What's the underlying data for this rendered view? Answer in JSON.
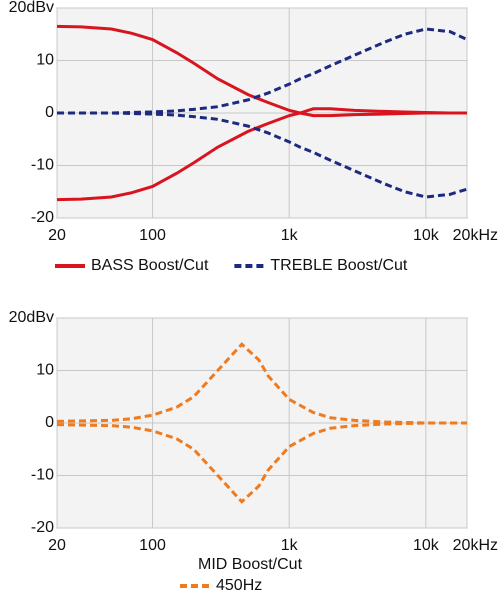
{
  "chart_data": [
    {
      "type": "line",
      "log_x": true,
      "grid": true,
      "x": [
        20,
        30,
        50,
        70,
        100,
        150,
        200,
        300,
        500,
        700,
        1000,
        1200,
        1500,
        2000,
        3000,
        5000,
        7000,
        10000,
        15000,
        20000
      ],
      "series": [
        {
          "name": "BASS Boost/Cut",
          "color": "#d9141e",
          "style": "solid",
          "values": [
            16.5,
            16.4,
            16,
            15.2,
            14,
            11.5,
            9.5,
            6.5,
            3.5,
            2,
            0.5,
            0,
            0.8,
            0.8,
            0.5,
            0.3,
            0.2,
            0.1,
            0,
            0
          ]
        },
        {
          "color": "#d9141e",
          "style": "solid",
          "values": [
            -16.5,
            -16.4,
            -16,
            -15.2,
            -14,
            -11.5,
            -9.5,
            -6.5,
            -3.5,
            -2,
            -0.5,
            0,
            -0.5,
            -0.5,
            -0.3,
            -0.2,
            -0.1,
            0,
            0,
            0
          ]
        },
        {
          "name": "TREBLE Boost/Cut",
          "color": "#1c2a80",
          "style": "dashed",
          "values": [
            0,
            0,
            0,
            0.1,
            0.2,
            0.4,
            0.7,
            1.2,
            2.5,
            3.8,
            5.5,
            6.5,
            7.5,
            9,
            11,
            13.5,
            15,
            16,
            15.5,
            14
          ]
        },
        {
          "color": "#1c2a80",
          "style": "dashed",
          "values": [
            0,
            0,
            0,
            -0.1,
            -0.2,
            -0.4,
            -0.7,
            -1.2,
            -2.5,
            -3.8,
            -5.5,
            -6.5,
            -7.5,
            -9,
            -11,
            -13.5,
            -15,
            -16,
            -15.5,
            -14.5
          ]
        }
      ],
      "xlim": [
        20,
        20000
      ],
      "xticks": [
        20,
        100,
        {
          "value": 1000,
          "label": "1k"
        },
        {
          "value": 10000,
          "label": "10k"
        },
        {
          "value": 20000,
          "label": "20kHz"
        }
      ],
      "ylim": [
        -20,
        20
      ],
      "yticks": [
        -20,
        -10,
        0,
        10,
        {
          "value": 20,
          "label": "20dBv"
        }
      ]
    },
    {
      "type": "line",
      "log_x": true,
      "grid": true,
      "legend_title": "MID Boost/Cut",
      "x": [
        20,
        30,
        50,
        70,
        100,
        150,
        200,
        300,
        450,
        600,
        700,
        1000,
        1500,
        2000,
        3000,
        5000,
        10000,
        20000
      ],
      "series": [
        {
          "name": "450Hz",
          "color": "#f07a1e",
          "style": "dashed",
          "values": [
            0.3,
            0.4,
            0.5,
            0.8,
            1.5,
            3,
            5,
            10,
            15,
            12,
            9,
            4.5,
            2,
            1,
            0.5,
            0.2,
            0,
            0
          ]
        },
        {
          "color": "#f07a1e",
          "style": "dashed",
          "values": [
            -0.3,
            -0.4,
            -0.5,
            -0.8,
            -1.5,
            -3,
            -5,
            -10,
            -15,
            -12,
            -9,
            -4.5,
            -2,
            -1,
            -0.5,
            -0.2,
            0,
            0
          ]
        }
      ],
      "xlim": [
        20,
        20000
      ],
      "xticks": [
        20,
        100,
        {
          "value": 1000,
          "label": "1k"
        },
        {
          "value": 10000,
          "label": "10k"
        },
        {
          "value": 20000,
          "label": "20kHz"
        }
      ],
      "ylim": [
        -20,
        20
      ],
      "yticks": [
        -20,
        -10,
        0,
        10,
        {
          "value": 20,
          "label": "20dBv"
        }
      ]
    }
  ]
}
